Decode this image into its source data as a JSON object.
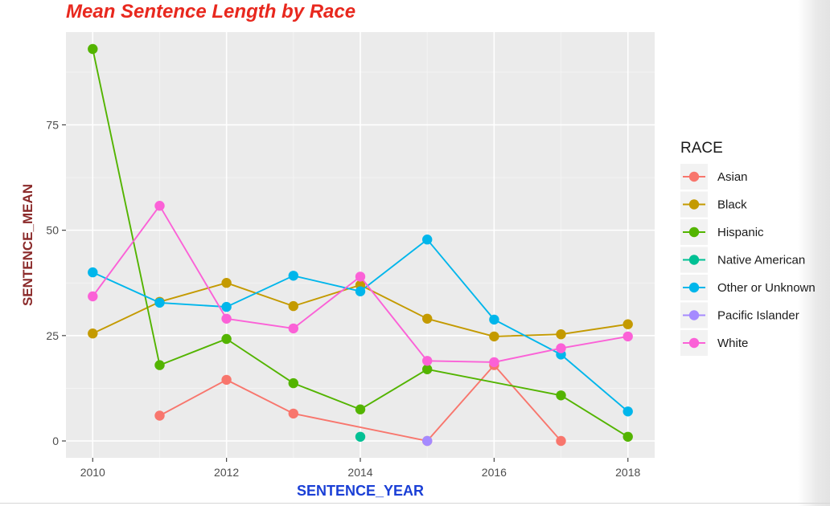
{
  "chart_data": {
    "type": "line",
    "title": "Mean Sentence Length by Race",
    "xlabel": "SENTENCE_YEAR",
    "ylabel": "SENTENCE_MEAN",
    "xlim": [
      2009.6,
      2018.4
    ],
    "ylim": [
      -4,
      97
    ],
    "xticks": [
      2010,
      2012,
      2014,
      2016,
      2018
    ],
    "yticks": [
      0,
      25,
      50,
      75
    ],
    "grid": true,
    "legend": {
      "title": "RACE",
      "placement": "right"
    },
    "series": [
      {
        "name": "Asian",
        "color": "#f8766d",
        "points": [
          [
            2011,
            6
          ],
          [
            2012,
            14.5
          ],
          [
            2013,
            6.5
          ],
          [
            2015,
            0
          ],
          [
            2016,
            18
          ],
          [
            2017,
            0
          ]
        ]
      },
      {
        "name": "Black",
        "color": "#c49a00",
        "points": [
          [
            2010,
            25.5
          ],
          [
            2011,
            33
          ],
          [
            2012,
            37.5
          ],
          [
            2013,
            32
          ],
          [
            2014,
            37
          ],
          [
            2015,
            29
          ],
          [
            2016,
            24.8
          ],
          [
            2017,
            25.3
          ],
          [
            2018,
            27.7
          ]
        ]
      },
      {
        "name": "Hispanic",
        "color": "#53b400",
        "points": [
          [
            2010,
            93
          ],
          [
            2011,
            18
          ],
          [
            2012,
            24.2
          ],
          [
            2013,
            13.7
          ],
          [
            2014,
            7.5
          ],
          [
            2015,
            17
          ],
          [
            2017,
            10.8
          ],
          [
            2018,
            1
          ]
        ]
      },
      {
        "name": "Native American",
        "color": "#00c094",
        "points": [
          [
            2014,
            1
          ]
        ]
      },
      {
        "name": "Other or Unknown",
        "color": "#00b6eb",
        "points": [
          [
            2010,
            40
          ],
          [
            2011,
            32.8
          ],
          [
            2012,
            31.8
          ],
          [
            2013,
            39.2
          ],
          [
            2014,
            35.5
          ],
          [
            2015,
            47.8
          ],
          [
            2016,
            28.8
          ],
          [
            2017,
            20.5
          ],
          [
            2018,
            7
          ]
        ]
      },
      {
        "name": "Pacific Islander",
        "color": "#a58aff",
        "points": [
          [
            2015,
            0
          ]
        ]
      },
      {
        "name": "White",
        "color": "#fb61d7",
        "points": [
          [
            2010,
            34.3
          ],
          [
            2011,
            55.8
          ],
          [
            2012,
            29
          ],
          [
            2013,
            26.7
          ],
          [
            2014,
            39
          ],
          [
            2015,
            19
          ],
          [
            2016,
            18.7
          ],
          [
            2017,
            22
          ],
          [
            2018,
            24.8
          ]
        ]
      }
    ]
  }
}
